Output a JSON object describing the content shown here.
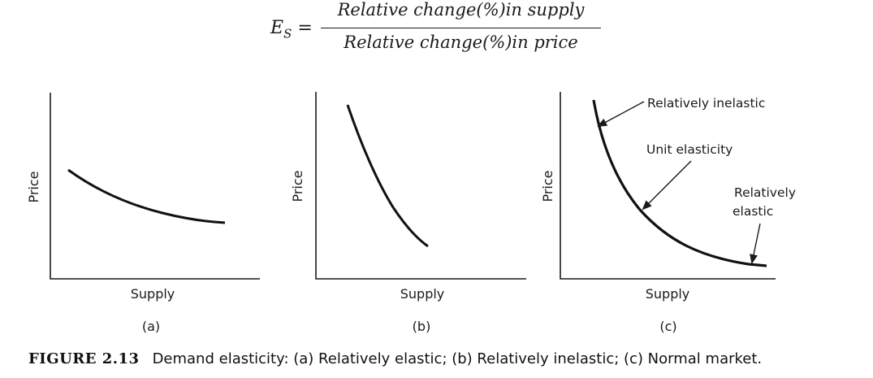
{
  "top_text": "",
  "equation": {
    "lhs_symbol": "E",
    "lhs_subscript": "S",
    "equals": "=",
    "numerator": "Relative change(%)in supply",
    "denominator": "Relative change(%)in price"
  },
  "panels": [
    {
      "id": "a",
      "ylabel": "Price",
      "xlabel": "Supply",
      "sublabel": "(a)"
    },
    {
      "id": "b",
      "ylabel": "Price",
      "xlabel": "Supply",
      "sublabel": "(b)"
    },
    {
      "id": "c",
      "ylabel": "Price",
      "xlabel": "Supply",
      "sublabel": "(c)",
      "annotations": {
        "relatively_inelastic": "Relatively inelastic",
        "unit_elasticity": "Unit elasticity",
        "relatively_elastic_line1": "Relatively",
        "relatively_elastic_line2": "elastic"
      }
    }
  ],
  "caption": {
    "figure_number": "FIGURE 2.13",
    "text": "Demand elasticity: (a) Relatively elastic; (b) Relatively inelastic; (c) Normal market."
  }
}
